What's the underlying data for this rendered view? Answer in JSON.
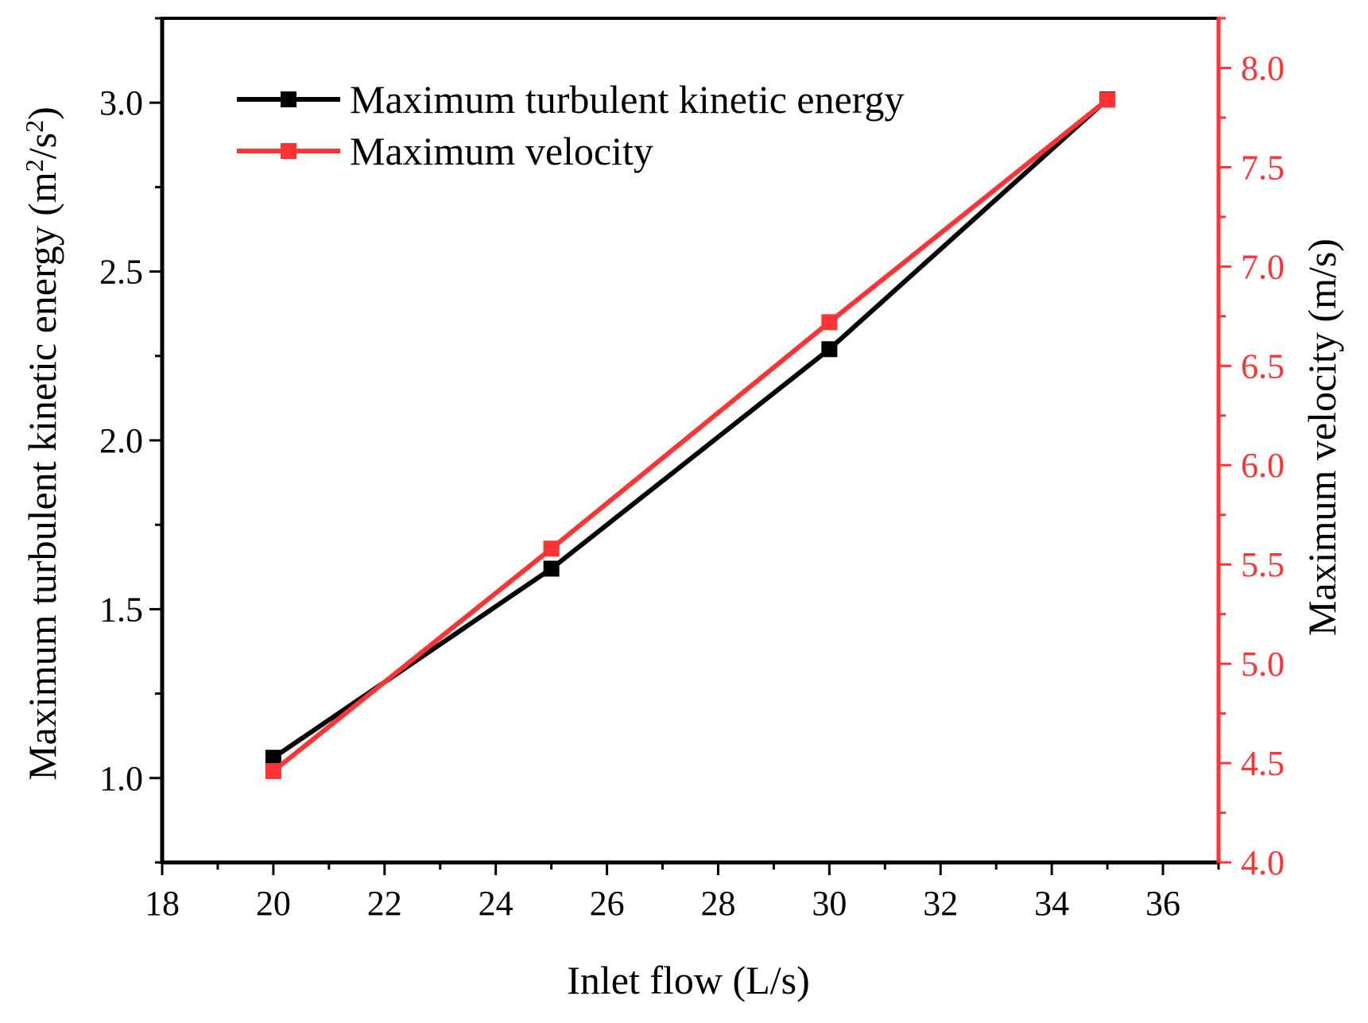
{
  "chart_data": {
    "type": "line",
    "title": "",
    "xlabel": "Inlet flow (L/s)",
    "ylabel": {
      "main": "Maximum turbulent kinetic energy (m",
      "sup1": "2",
      "mid": "/s",
      "sup2": "2",
      "end": ")"
    },
    "y2label": "Maximum velocity (m/s)",
    "xlim": [
      18,
      37
    ],
    "ylim": [
      0.75,
      3.25
    ],
    "y2lim": [
      4.0,
      8.25
    ],
    "x_ticks": [
      "18",
      "20",
      "22",
      "24",
      "26",
      "28",
      "30",
      "32",
      "34",
      "36"
    ],
    "y_ticks": [
      "1.0",
      "1.5",
      "2.0",
      "2.5",
      "3.0"
    ],
    "y2_ticks": [
      "4.0",
      "4.5",
      "5.0",
      "5.5",
      "6.0",
      "6.5",
      "7.0",
      "7.5",
      "8.0"
    ],
    "legend_position": "top-left",
    "series": [
      {
        "name": "Maximum turbulent kinetic energy",
        "axis": "left",
        "color": "#000000",
        "marker": "square",
        "x": [
          20,
          25,
          30,
          35
        ],
        "values": [
          1.06,
          1.62,
          2.27,
          3.01
        ]
      },
      {
        "name": "Maximum velocity",
        "axis": "right",
        "color": "#ff3333",
        "marker": "square",
        "x": [
          20,
          25,
          30,
          35
        ],
        "values": [
          4.46,
          5.58,
          6.72,
          7.84
        ]
      }
    ]
  }
}
